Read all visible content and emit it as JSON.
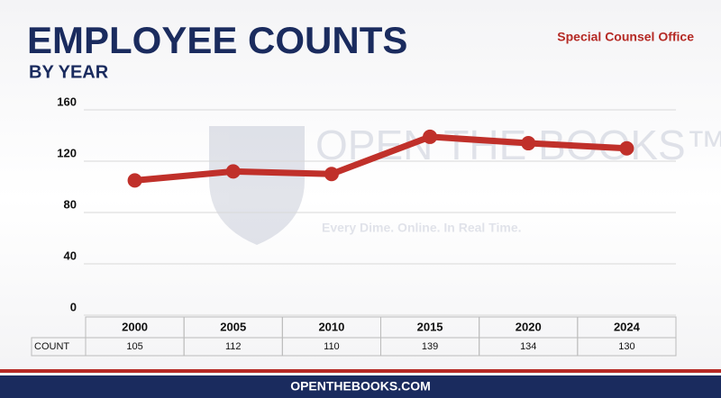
{
  "chart_data": {
    "type": "line",
    "title": "EMPLOYEE COUNTS",
    "subtitle": "BY YEAR",
    "source": "Special Counsel Office",
    "table_row_label": "COUNT",
    "footer": "OPENTHEBOOKS.COM",
    "watermark": {
      "name": "OPEN THE BOOKS™",
      "tagline": "Every Dime. Online. In Real Time."
    },
    "categories": [
      "2000",
      "2005",
      "2010",
      "2015",
      "2020",
      "2024"
    ],
    "values": [
      105,
      112,
      110,
      139,
      134,
      130
    ],
    "color": "#c0302a",
    "ylim": [
      0,
      160
    ],
    "yticks": [
      0,
      40,
      80,
      120,
      160
    ],
    "grid": true
  }
}
